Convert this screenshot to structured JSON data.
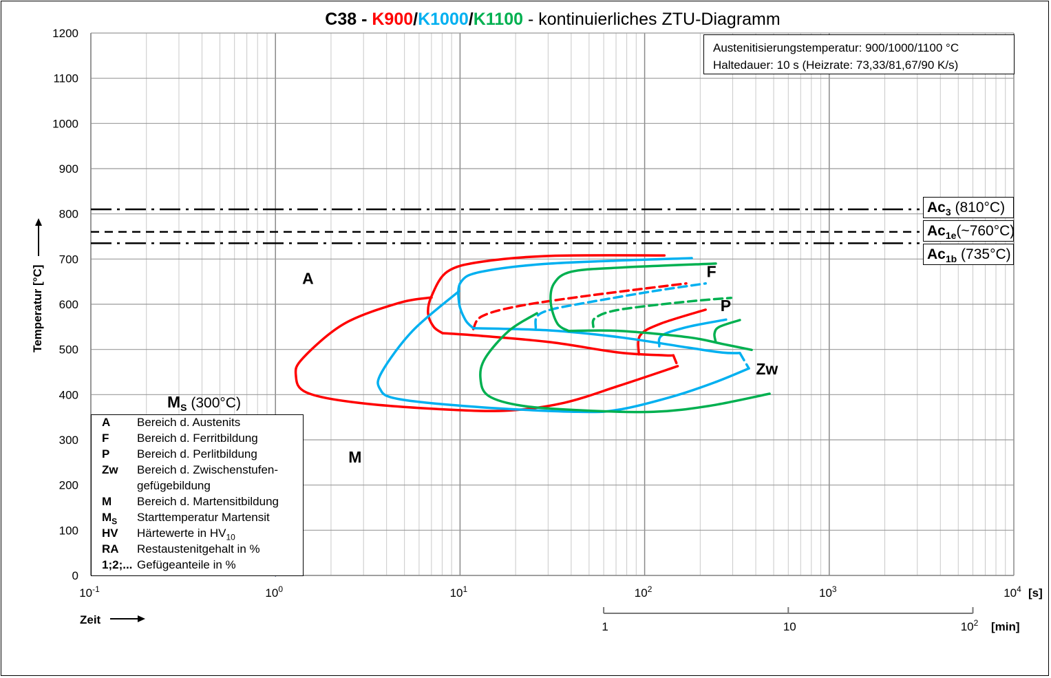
{
  "chart_data": {
    "type": "line",
    "title": {
      "parts": [
        {
          "text": "C38 - ",
          "color": "#000000"
        },
        {
          "text": "K900",
          "color": "#ff0000"
        },
        {
          "text": "/",
          "color": "#000000"
        },
        {
          "text": "K1000",
          "color": "#00b0f0"
        },
        {
          "text": "/",
          "color": "#000000"
        },
        {
          "text": "K1100",
          "color": "#00b050"
        },
        {
          "text": " - kontinuierliches ZTU-Diagramm",
          "color": "#000000",
          "normal": true
        }
      ]
    },
    "xlabel": "Zeit",
    "ylabel": "Temperatur [°C]",
    "xunit": "[s]",
    "x2unit": "[min]",
    "xscale": "log",
    "xlim": [
      0.1,
      10000
    ],
    "ylim": [
      0,
      1200
    ],
    "grid": true,
    "xticks": [
      {
        "base": "10",
        "exp": "-1"
      },
      {
        "base": "10",
        "exp": "0"
      },
      {
        "base": "10",
        "exp": "1"
      },
      {
        "base": "10",
        "exp": "2"
      },
      {
        "base": "10",
        "exp": "3"
      },
      {
        "base": "10",
        "exp": "4"
      }
    ],
    "yticks": [
      "0",
      "100",
      "200",
      "300",
      "400",
      "500",
      "600",
      "700",
      "800",
      "900",
      "1000",
      "1100",
      "1200"
    ],
    "x2ticks": [
      {
        "min": 1,
        "label": "1"
      },
      {
        "min": 10,
        "label": "10"
      },
      {
        "min": 100,
        "label": "10",
        "exp": "2"
      }
    ],
    "colors": {
      "K900": "#ff0000",
      "K1000": "#00b0f0",
      "K1100": "#00b050"
    },
    "reference_lines": [
      {
        "name": "Ac3",
        "value": 810,
        "style": "dash-dot",
        "label": "Ac",
        "sub": "3",
        "suffix": " (810°C)"
      },
      {
        "name": "Ac1e",
        "value": 760,
        "style": "dashed",
        "label": "Ac",
        "sub": "1e",
        "suffix": "(~760°C)"
      },
      {
        "name": "Ac1b",
        "value": 735,
        "style": "dash-dot",
        "label": "Ac",
        "sub": "1b",
        "suffix": " (735°C)"
      }
    ],
    "series": [
      {
        "name": "K900",
        "color": "#ff0000",
        "curves": [
          {
            "dashed": false,
            "points": [
              [
                128,
                708
              ],
              [
                31,
                707
              ],
              [
                13.1,
                694
              ],
              [
                8.53,
                672
              ],
              [
                7.01,
                618
              ],
              [
                6.71,
                580
              ],
              [
                7.2,
                550
              ],
              [
                8.04,
                536
              ]
            ]
          },
          {
            "dashed": false,
            "points": [
              [
                8.04,
                536
              ],
              [
                13.1,
                530
              ],
              [
                31,
                516
              ],
              [
                73.1,
                493
              ],
              [
                128,
                487
              ],
              [
                143,
                487
              ]
            ]
          },
          {
            "dashed": false,
            "points": [
              [
                7.01,
                615
              ],
              [
                4.68,
                603
              ],
              [
                2.36,
                557
              ],
              [
                1.41,
                481
              ],
              [
                1.29,
                443
              ],
              [
                1.47,
                405
              ],
              [
                2.8,
                382
              ],
              [
                8.53,
                367
              ],
              [
                18.5,
                365
              ],
              [
                36.7,
                382
              ],
              [
                73.1,
                420
              ],
              [
                151,
                463
              ]
            ]
          },
          {
            "dashed": false,
            "points": [
              [
                214,
                588
              ],
              [
                122,
                557
              ],
              [
                94.5,
                531
              ],
              [
                93,
                489
              ]
            ]
          },
          {
            "dashed": true,
            "points": [
              [
                11.8,
                545
              ],
              [
                13.1,
                573
              ],
              [
                20.2,
                595
              ],
              [
                47.6,
                618
              ],
              [
                168,
                646
              ]
            ]
          },
          {
            "dashed": true,
            "points": [
              [
                143,
                487
              ],
              [
                151,
                463
              ]
            ]
          }
        ]
      },
      {
        "name": "K1000",
        "color": "#00b0f0",
        "curves": [
          {
            "dashed": false,
            "points": [
              [
                180,
                702
              ],
              [
                31,
                690
              ],
              [
                13.1,
                672
              ],
              [
                10.1,
                649
              ],
              [
                9.88,
                603
              ],
              [
                10.7,
                565
              ],
              [
                11.8,
                547
              ]
            ]
          },
          {
            "dashed": false,
            "points": [
              [
                11.8,
                547
              ],
              [
                31,
                542
              ],
              [
                73.1,
                527
              ],
              [
                172,
                504
              ],
              [
                265,
                493
              ],
              [
                328,
                492
              ]
            ]
          },
          {
            "dashed": false,
            "points": [
              [
                9.88,
                629
              ],
              [
                5.56,
                542
              ],
              [
                3.78,
                451
              ],
              [
                3.68,
                413
              ],
              [
                4.68,
                390
              ],
              [
                13.1,
                372
              ],
              [
                43.7,
                362
              ],
              [
                73.1,
                367
              ],
              [
                145,
                397
              ],
              [
                243,
                428
              ],
              [
                367,
                458
              ]
            ]
          },
          {
            "dashed": true,
            "points": [
              [
                25.7,
                548
              ],
              [
                26.1,
                573
              ],
              [
                31,
                588
              ],
              [
                47.6,
                603
              ],
              [
                112,
                629
              ],
              [
                214,
                646
              ]
            ]
          },
          {
            "dashed": false,
            "points": [
              [
                276,
                566
              ],
              [
                172,
                550
              ],
              [
                124,
                531
              ],
              [
                120,
                507
              ]
            ]
          },
          {
            "dashed": true,
            "points": [
              [
                328,
                492
              ],
              [
                367,
                458
              ]
            ]
          }
        ]
      },
      {
        "name": "K1100",
        "color": "#00b050",
        "curves": [
          {
            "dashed": false,
            "points": [
              [
                243,
                690
              ],
              [
                73.1,
                681
              ],
              [
                40.1,
                672
              ],
              [
                32.3,
                646
              ],
              [
                31,
                603
              ],
              [
                33.7,
                557
              ],
              [
                38.7,
                541
              ]
            ]
          },
          {
            "dashed": false,
            "points": [
              [
                38.7,
                541
              ],
              [
                73.1,
                541
              ],
              [
                172,
                527
              ],
              [
                265,
                512
              ],
              [
                380,
                499
              ]
            ]
          },
          {
            "dashed": false,
            "points": [
              [
                26.1,
                580
              ],
              [
                18.5,
                542
              ],
              [
                13.7,
                481
              ],
              [
                12.9,
                436
              ],
              [
                14.3,
                397
              ],
              [
                22,
                375
              ],
              [
                47.6,
                365
              ],
              [
                112,
                362
              ],
              [
                223,
                375
              ],
              [
                475,
                402
              ]
            ]
          },
          {
            "dashed": true,
            "points": [
              [
                52.7,
                550
              ],
              [
                54.1,
                570
              ],
              [
                73.1,
                588
              ],
              [
                172,
                606
              ],
              [
                294,
                614
              ]
            ]
          },
          {
            "dashed": false,
            "points": [
              [
                328,
                565
              ],
              [
                254,
                550
              ],
              [
                239,
                535
              ],
              [
                243,
                516
              ]
            ]
          }
        ]
      }
    ],
    "region_labels": [
      {
        "text": "A",
        "t": 1.5,
        "T": 645
      },
      {
        "text": "F",
        "t": 230,
        "T": 660
      },
      {
        "text": "P",
        "t": 275,
        "T": 585
      },
      {
        "text": "Zw",
        "t": 460,
        "T": 445
      },
      {
        "text": "M",
        "t": 2.7,
        "T": 250
      }
    ],
    "ms_label": {
      "text": "M",
      "sub": "S",
      "suffix": " (300°C)",
      "value": 300
    },
    "marker": {
      "t": 1,
      "T": 0,
      "symbol": "x",
      "color": "#1f3a78"
    }
  },
  "info": {
    "line1": "Austenitisierungstemperatur:   900/1000/1100 °C",
    "line2": "Haltedauer: 10 s     (Heizrate: 73,33/81,67/90 K/s)"
  },
  "legend": [
    {
      "key": "A",
      "text": "Bereich d. Austenits"
    },
    {
      "key": "F",
      "text": "Bereich d. Ferritbildung"
    },
    {
      "key": "P",
      "text": "Bereich d. Perlitbildung"
    },
    {
      "key": "Zw",
      "text": "Bereich d. Zwischenstufen-"
    },
    {
      "key": "",
      "text": "gefügebildung"
    },
    {
      "key": "M",
      "text": "Bereich d. Martensitbildung"
    },
    {
      "key": "M",
      "keysub": "S",
      "text": "Starttemperatur Martensit"
    },
    {
      "key": "HV",
      "text": "Härtewerte in HV",
      "textsub": "10"
    },
    {
      "key": "RA",
      "text": "Restaustenitgehalt in %"
    },
    {
      "key": "1;2;...",
      "text": "Gefügeanteile in %"
    }
  ]
}
